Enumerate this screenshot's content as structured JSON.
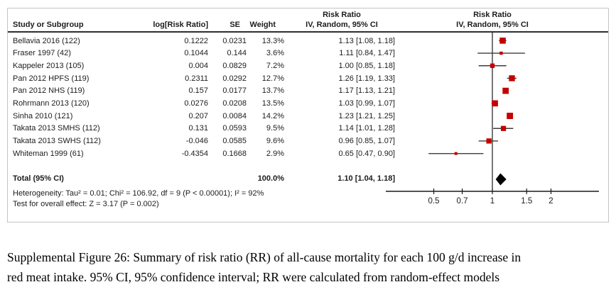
{
  "colors": {
    "marker_red": "#c40000",
    "ci_line": "#3d3d3d",
    "axis": "#1a1a1a",
    "diamond": "#000000",
    "box_border": "#c4c4c4",
    "text": "#1c1c1c"
  },
  "table": {
    "col_headers": {
      "study": "Study or Subgroup",
      "log_rr": "log[Risk Ratio]",
      "se": "SE",
      "weight": "Weight",
      "estimate_line1": "Risk Ratio",
      "estimate_line2": "IV, Random, 95% CI"
    },
    "rows": [
      {
        "study": "Bellavia 2016 (122)",
        "log_rr": "0.1222",
        "se": "0.0231",
        "weight": "13.3%",
        "estimate": "1.13 [1.08, 1.18]"
      },
      {
        "study": "Fraser 1997 (42)",
        "log_rr": "0.1044",
        "se": "0.144",
        "weight": "3.6%",
        "estimate": "1.11 [0.84, 1.47]"
      },
      {
        "study": "Kappeler 2013 (105)",
        "log_rr": "0.004",
        "se": "0.0829",
        "weight": "7.2%",
        "estimate": "1.00 [0.85, 1.18]"
      },
      {
        "study": "Pan 2012 HPFS (119)",
        "log_rr": "0.2311",
        "se": "0.0292",
        "weight": "12.7%",
        "estimate": "1.26 [1.19, 1.33]"
      },
      {
        "study": "Pan 2012 NHS (119)",
        "log_rr": "0.157",
        "se": "0.0177",
        "weight": "13.7%",
        "estimate": "1.17 [1.13, 1.21]"
      },
      {
        "study": "Rohrmann 2013 (120)",
        "log_rr": "0.0276",
        "se": "0.0208",
        "weight": "13.5%",
        "estimate": "1.03 [0.99, 1.07]"
      },
      {
        "study": "Sinha 2010 (121)",
        "log_rr": "0.207",
        "se": "0.0084",
        "weight": "14.2%",
        "estimate": "1.23 [1.21, 1.25]"
      },
      {
        "study": "Takata 2013 SMHS (112)",
        "log_rr": "0.131",
        "se": "0.0593",
        "weight": "9.5%",
        "estimate": "1.14 [1.01, 1.28]"
      },
      {
        "study": "Takata 2013 SWHS (112)",
        "log_rr": "-0.046",
        "se": "0.0585",
        "weight": "9.6%",
        "estimate": "0.96 [0.85, 1.07]"
      },
      {
        "study": "Whiteman 1999 (61)",
        "log_rr": "-0.4354",
        "se": "0.1668",
        "weight": "2.9%",
        "estimate": "0.65 [0.47, 0.90]"
      }
    ],
    "total": {
      "label": "Total (95% CI)",
      "weight": "100.0%",
      "estimate": "1.10 [1.04, 1.18]"
    },
    "heterogeneity": "Heterogeneity: Tau² = 0.01; Chi² = 106.92, df = 9 (P < 0.00001); I² = 92%",
    "overall_effect": "Test for overall effect: Z = 3.17 (P = 0.002)"
  },
  "plot": {
    "header_line1": "Risk Ratio",
    "header_line2": "IV, Random, 95% CI",
    "tick_labels": [
      "0.5",
      "0.7",
      "1",
      "1.5",
      "2"
    ]
  },
  "caption": "Supplemental Figure 26: Summary of risk ratio (RR) of all-cause mortality for each 100 g/d increase in red meat intake. 95% CI, 95% confidence interval; RR were calculated from random-effect models",
  "chart_data": {
    "type": "scatter",
    "subtype": "forest-plot",
    "title": "Risk Ratio, IV, Random, 95% CI",
    "x_scale": "log",
    "x_ticks": [
      0.5,
      0.7,
      1,
      1.5,
      2
    ],
    "x_range": [
      0.28,
      3.5
    ],
    "null_line": 1,
    "legend": "none",
    "studies": [
      {
        "name": "Bellavia 2016 (122)",
        "log_rr": 0.1222,
        "se": 0.0231,
        "weight_pct": 13.3,
        "rr": 1.13,
        "ci_low": 1.08,
        "ci_high": 1.18
      },
      {
        "name": "Fraser 1997 (42)",
        "log_rr": 0.1044,
        "se": 0.144,
        "weight_pct": 3.6,
        "rr": 1.11,
        "ci_low": 0.84,
        "ci_high": 1.47
      },
      {
        "name": "Kappeler 2013 (105)",
        "log_rr": 0.004,
        "se": 0.0829,
        "weight_pct": 7.2,
        "rr": 1.0,
        "ci_low": 0.85,
        "ci_high": 1.18
      },
      {
        "name": "Pan 2012 HPFS (119)",
        "log_rr": 0.2311,
        "se": 0.0292,
        "weight_pct": 12.7,
        "rr": 1.26,
        "ci_low": 1.19,
        "ci_high": 1.33
      },
      {
        "name": "Pan 2012 NHS (119)",
        "log_rr": 0.157,
        "se": 0.0177,
        "weight_pct": 13.7,
        "rr": 1.17,
        "ci_low": 1.13,
        "ci_high": 1.21
      },
      {
        "name": "Rohrmann 2013 (120)",
        "log_rr": 0.0276,
        "se": 0.0208,
        "weight_pct": 13.5,
        "rr": 1.03,
        "ci_low": 0.99,
        "ci_high": 1.07
      },
      {
        "name": "Sinha 2010 (121)",
        "log_rr": 0.207,
        "se": 0.0084,
        "weight_pct": 14.2,
        "rr": 1.23,
        "ci_low": 1.21,
        "ci_high": 1.25
      },
      {
        "name": "Takata 2013 SMHS (112)",
        "log_rr": 0.131,
        "se": 0.0593,
        "weight_pct": 9.5,
        "rr": 1.14,
        "ci_low": 1.01,
        "ci_high": 1.28
      },
      {
        "name": "Takata 2013 SWHS (112)",
        "log_rr": -0.046,
        "se": 0.0585,
        "weight_pct": 9.6,
        "rr": 0.96,
        "ci_low": 0.85,
        "ci_high": 1.07
      },
      {
        "name": "Whiteman 1999 (61)",
        "log_rr": -0.4354,
        "se": 0.1668,
        "weight_pct": 2.9,
        "rr": 0.65,
        "ci_low": 0.47,
        "ci_high": 0.9
      }
    ],
    "total": {
      "name": "Total (95% CI)",
      "weight_pct": 100.0,
      "rr": 1.1,
      "ci_low": 1.04,
      "ci_high": 1.18
    },
    "heterogeneity": {
      "tau2": 0.01,
      "chi2": 106.92,
      "df": 9,
      "p": "< 0.00001",
      "i2_pct": 92
    },
    "overall_effect": {
      "z": 3.17,
      "p": 0.002
    }
  }
}
